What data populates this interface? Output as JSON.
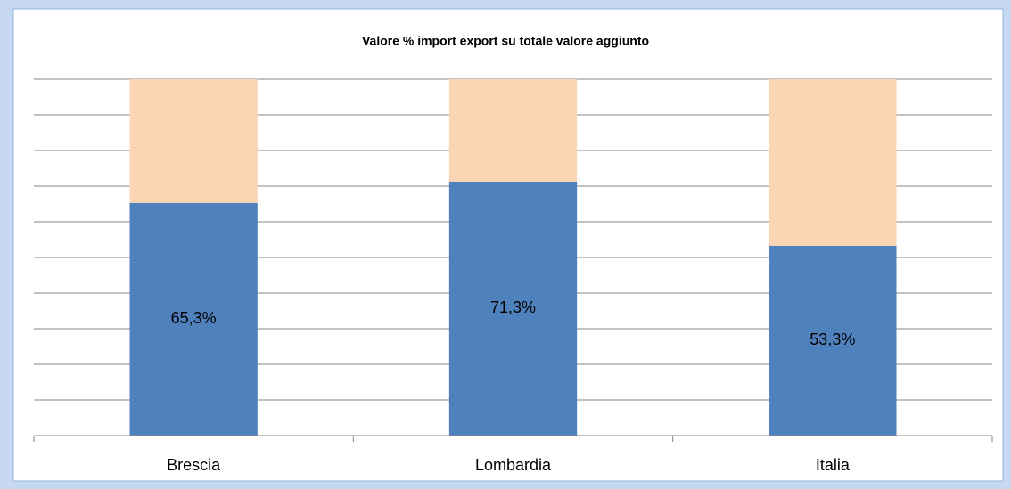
{
  "chart_data": {
    "type": "stacked_bar_100",
    "title": "Valore % import export su totale valore aggiunto",
    "categories": [
      "Brescia",
      "Lombardia",
      "Italia"
    ],
    "series": [
      {
        "color": "#4f81bd",
        "values": [
          65.3,
          71.3,
          53.3
        ],
        "value_labels": [
          "65,3%",
          "71,3%",
          "53,3%"
        ]
      },
      {
        "color": "#fcd5b5",
        "values": [
          34.7,
          28.7,
          46.7
        ]
      }
    ],
    "ylim": [
      0,
      100
    ],
    "yticks": [
      0,
      10,
      20,
      30,
      40,
      50,
      60,
      70,
      80,
      90,
      100
    ],
    "grid": true
  }
}
